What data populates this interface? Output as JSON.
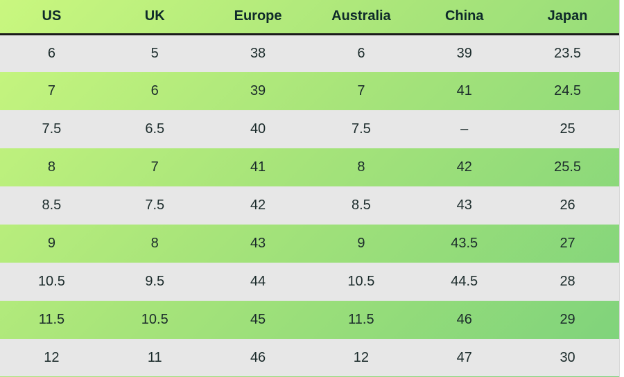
{
  "size_chart": {
    "headers": [
      "US",
      "UK",
      "Europe",
      "Australia",
      "China",
      "Japan"
    ],
    "rows": [
      [
        "6",
        "5",
        "38",
        "6",
        "39",
        "23.5"
      ],
      [
        "7",
        "6",
        "39",
        "7",
        "41",
        "24.5"
      ],
      [
        "7.5",
        "6.5",
        "40",
        "7.5",
        "–",
        "25"
      ],
      [
        "8",
        "7",
        "41",
        "8",
        "42",
        "25.5"
      ],
      [
        "8.5",
        "7.5",
        "42",
        "8.5",
        "43",
        "26"
      ],
      [
        "9",
        "8",
        "43",
        "9",
        "43.5",
        "27"
      ],
      [
        "10.5",
        "9.5",
        "44",
        "10.5",
        "44.5",
        "28"
      ],
      [
        "11.5",
        "10.5",
        "45",
        "11.5",
        "46",
        "29"
      ],
      [
        "12",
        "11",
        "46",
        "12",
        "47",
        "30"
      ]
    ]
  },
  "colors": {
    "gradient_start": "#c9f77f",
    "gradient_end": "#7dd27b",
    "stripe_light": "#e7e7e7",
    "text": "#1b2b2b"
  }
}
